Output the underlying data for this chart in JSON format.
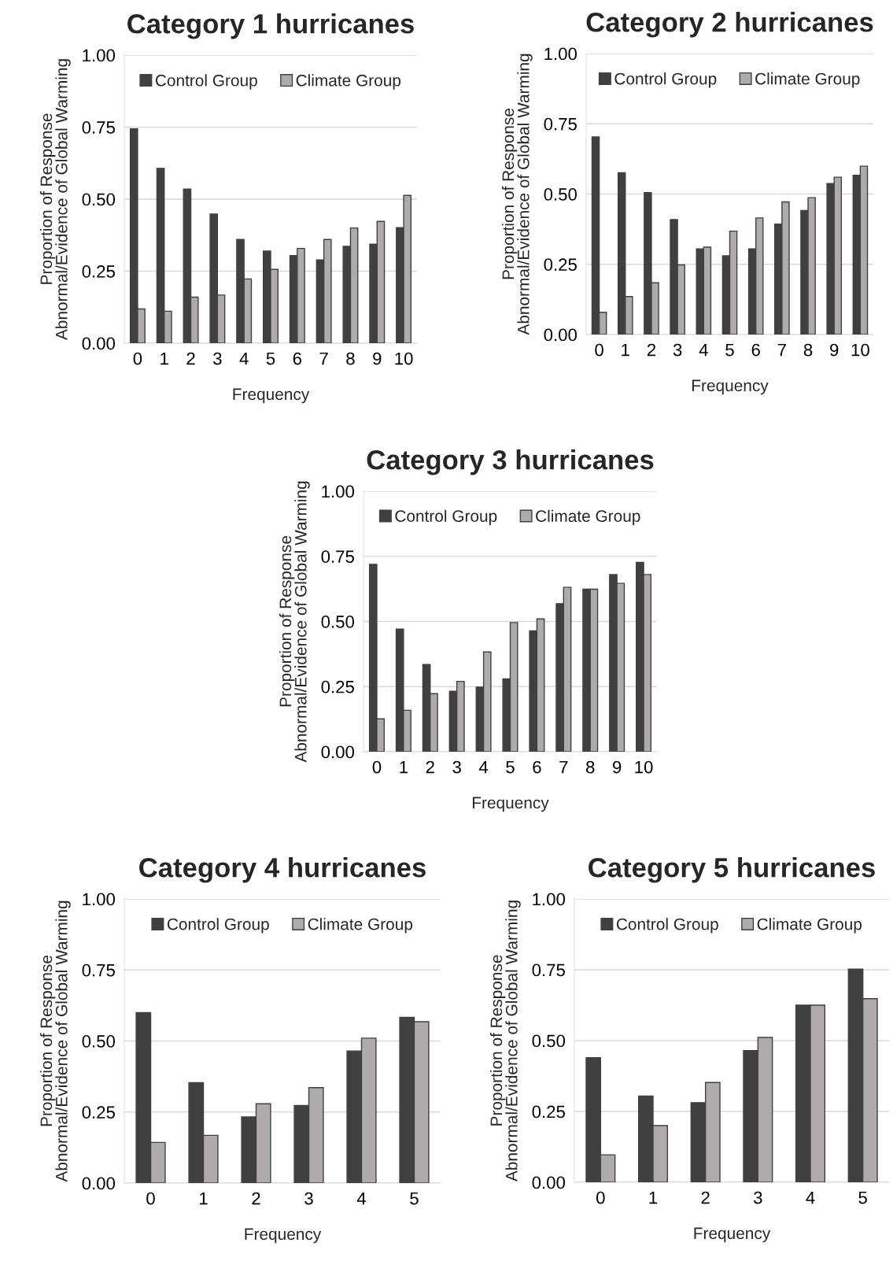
{
  "chart_data": [
    {
      "type": "bar",
      "title": "Category 1 hurricanes",
      "xlabel": "Frequency",
      "ylabel": "Proportion of Response\nAbnormal/Evidence of Global Warming",
      "categories": [
        "0",
        "1",
        "2",
        "3",
        "4",
        "5",
        "6",
        "7",
        "8",
        "9",
        "10"
      ],
      "series": [
        {
          "name": "Control Group",
          "color": "#404040",
          "values": [
            0.744,
            0.607,
            0.535,
            0.448,
            0.36,
            0.32,
            0.304,
            0.289,
            0.336,
            0.344,
            0.401
          ]
        },
        {
          "name": "Climate Group",
          "color": "#afabab",
          "values": [
            0.119,
            0.111,
            0.16,
            0.167,
            0.223,
            0.256,
            0.329,
            0.36,
            0.4,
            0.423,
            0.513
          ]
        }
      ],
      "ylim": [
        0,
        1
      ],
      "yticks": [
        {
          "value": 0,
          "label": "0.00"
        },
        {
          "value": 0.25,
          "label": "0.25"
        },
        {
          "value": 0.5,
          "label": "0.50"
        },
        {
          "value": 0.75,
          "label": "0.75"
        },
        {
          "value": 1,
          "label": "1.00"
        }
      ],
      "grid": "y",
      "legend": "top"
    },
    {
      "type": "bar",
      "title": "Category 2 hurricanes",
      "xlabel": "Frequency",
      "ylabel": "Proportion of Response\nAbnormal/Evidence of Global Warming",
      "categories": [
        "0",
        "1",
        "2",
        "3",
        "4",
        "5",
        "6",
        "7",
        "8",
        "9",
        "10"
      ],
      "series": [
        {
          "name": "Control Group",
          "color": "#404040",
          "values": [
            0.703,
            0.576,
            0.505,
            0.409,
            0.305,
            0.28,
            0.305,
            0.393,
            0.441,
            0.537,
            0.567
          ]
        },
        {
          "name": "Climate Group",
          "color": "#afabab",
          "values": [
            0.079,
            0.135,
            0.184,
            0.248,
            0.311,
            0.368,
            0.415,
            0.472,
            0.487,
            0.56,
            0.599
          ]
        }
      ],
      "ylim": [
        0,
        1
      ],
      "yticks": [
        {
          "value": 0,
          "label": "0.00"
        },
        {
          "value": 0.25,
          "label": "0.25"
        },
        {
          "value": 0.5,
          "label": "0.50"
        },
        {
          "value": 0.75,
          "label": "0.75"
        },
        {
          "value": 1,
          "label": "1.00"
        }
      ],
      "grid": "y",
      "legend": "top"
    },
    {
      "type": "bar",
      "title": "Category 3 hurricanes",
      "xlabel": "Frequency",
      "ylabel": "Proportion of Response\nAbnormal/Evidence of Global Warming",
      "categories": [
        "0",
        "1",
        "2",
        "3",
        "4",
        "5",
        "6",
        "7",
        "8",
        "9",
        "10"
      ],
      "series": [
        {
          "name": "Control Group",
          "color": "#404040",
          "values": [
            0.719,
            0.471,
            0.335,
            0.232,
            0.248,
            0.28,
            0.464,
            0.568,
            0.624,
            0.68,
            0.727
          ]
        },
        {
          "name": "Climate Group",
          "color": "#afabab",
          "values": [
            0.126,
            0.159,
            0.223,
            0.27,
            0.383,
            0.496,
            0.51,
            0.631,
            0.624,
            0.646,
            0.68
          ]
        }
      ],
      "ylim": [
        0,
        1
      ],
      "yticks": [
        {
          "value": 0,
          "label": "0.00"
        },
        {
          "value": 0.25,
          "label": "0.25"
        },
        {
          "value": 0.5,
          "label": "0.50"
        },
        {
          "value": 0.75,
          "label": "0.75"
        },
        {
          "value": 1,
          "label": "1.00"
        }
      ],
      "grid": "y",
      "legend": "top"
    },
    {
      "type": "bar",
      "title": "Category 4 hurricanes",
      "xlabel": "Frequency",
      "ylabel": "Proportion of Response\nAbnormal/Evidence of Global Warming",
      "categories": [
        "0",
        "1",
        "2",
        "3",
        "4",
        "5"
      ],
      "series": [
        {
          "name": "Control Group",
          "color": "#404040",
          "values": [
            0.6,
            0.353,
            0.233,
            0.273,
            0.465,
            0.583
          ]
        },
        {
          "name": "Climate Group",
          "color": "#afabab",
          "values": [
            0.143,
            0.168,
            0.279,
            0.336,
            0.51,
            0.568
          ]
        }
      ],
      "ylim": [
        0,
        1
      ],
      "yticks": [
        {
          "value": 0,
          "label": "0.00"
        },
        {
          "value": 0.25,
          "label": "0.25"
        },
        {
          "value": 0.5,
          "label": "0.50"
        },
        {
          "value": 0.75,
          "label": "0.75"
        },
        {
          "value": 1,
          "label": "1.00"
        }
      ],
      "grid": "y",
      "legend": "top"
    },
    {
      "type": "bar",
      "title": "Category 5 hurricanes",
      "xlabel": "Frequency",
      "ylabel": "Proportion of Response\nAbnormal/Evidence of Global Warming",
      "categories": [
        "0",
        "1",
        "2",
        "3",
        "4",
        "5"
      ],
      "series": [
        {
          "name": "Control Group",
          "color": "#404040",
          "values": [
            0.44,
            0.304,
            0.281,
            0.465,
            0.625,
            0.752
          ]
        },
        {
          "name": "Climate Group",
          "color": "#afabab",
          "values": [
            0.097,
            0.2,
            0.352,
            0.511,
            0.625,
            0.648
          ]
        }
      ],
      "ylim": [
        0,
        1
      ],
      "yticks": [
        {
          "value": 0,
          "label": "0.00"
        },
        {
          "value": 0.25,
          "label": "0.25"
        },
        {
          "value": 0.5,
          "label": "0.50"
        },
        {
          "value": 0.75,
          "label": "0.75"
        },
        {
          "value": 1,
          "label": "1.00"
        }
      ],
      "grid": "y",
      "legend": "top"
    }
  ]
}
